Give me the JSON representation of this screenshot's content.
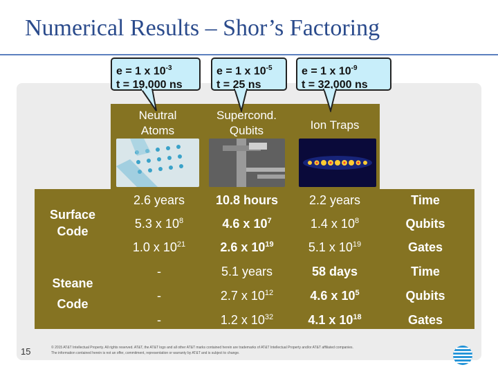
{
  "slide": {
    "title": "Numerical Results – Shor’s Factoring",
    "page_number": "15",
    "footnote": "© 2015 AT&T Intellectual Property. All rights reserved. AT&T, the AT&T logo and all other AT&T marks contained herein are trademarks of AT&T Intellectual Property and/or AT&T affiliated companies. The information contained herein is not an offer, commitment, representation or warranty by AT&T and is subject to change."
  },
  "callouts": [
    {
      "e_base": "e = 1 x 10",
      "e_exp": "-3",
      "t": "t = 19,000 ns"
    },
    {
      "e_base": "e = 1 x 10",
      "e_exp": "-5",
      "t": "t = 25 ns"
    },
    {
      "e_base": "e = 1 x 10",
      "e_exp": "-9",
      "t": "t = 32,000 ns"
    }
  ],
  "columns": [
    {
      "line1": "Neutral",
      "line2": "Atoms"
    },
    {
      "line1": "Supercond.",
      "line2": "Qubits"
    },
    {
      "line1": "Ion Traps",
      "line2": ""
    }
  ],
  "row_groups": [
    {
      "label_line1": "Surface",
      "label_line2": "Code",
      "rows": [
        {
          "unit": "Time",
          "cells": [
            {
              "base": "2.6 years",
              "exp": ""
            },
            {
              "base": "10.8 hours",
              "exp": ""
            },
            {
              "base": "2.2 years",
              "exp": ""
            }
          ]
        },
        {
          "unit": "Qubits",
          "cells": [
            {
              "base": "5.3 x 10",
              "exp": "8"
            },
            {
              "base": "4.6 x 10",
              "exp": "7"
            },
            {
              "base": "1.4 x 10",
              "exp": "8"
            }
          ]
        },
        {
          "unit": "Gates",
          "cells": [
            {
              "base": "1.0 x 10",
              "exp": "21"
            },
            {
              "base": "2.6 x 10",
              "exp": "19"
            },
            {
              "base": "5.1 x 10",
              "exp": "19"
            }
          ]
        }
      ]
    },
    {
      "label_line1": "Steane",
      "label_line2": "Code",
      "rows": [
        {
          "unit": "Time",
          "cells": [
            {
              "base": "-",
              "exp": ""
            },
            {
              "base": "5.1 years",
              "exp": ""
            },
            {
              "base": "58 days",
              "exp": ""
            }
          ]
        },
        {
          "unit": "Qubits",
          "cells": [
            {
              "base": "-",
              "exp": ""
            },
            {
              "base": "2.7 x 10",
              "exp": "12"
            },
            {
              "base": "4.6 x 10",
              "exp": "5"
            }
          ]
        },
        {
          "unit": "Gates",
          "cells": [
            {
              "base": "-",
              "exp": ""
            },
            {
              "base": "1.2 x 10",
              "exp": "32"
            },
            {
              "base": "4.1 x 10",
              "exp": "18"
            }
          ]
        }
      ]
    }
  ],
  "colors": {
    "title": "#2b4b8c",
    "table_bg": "#857322",
    "callout_bg": "#c8eefa"
  }
}
